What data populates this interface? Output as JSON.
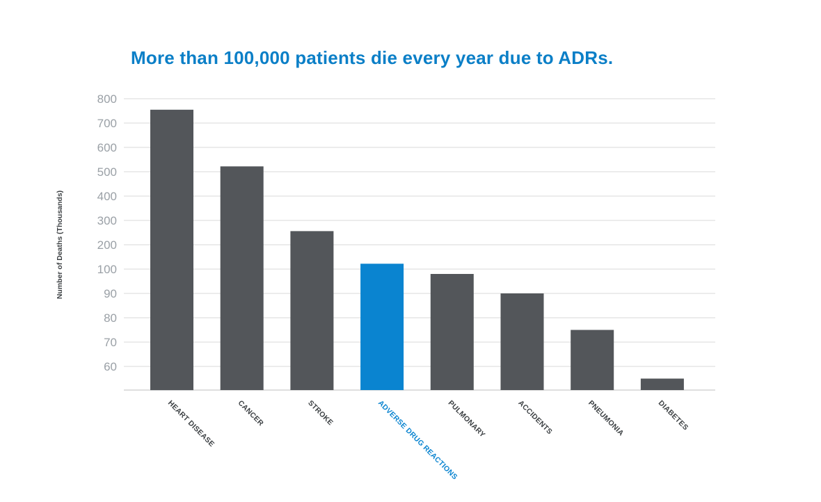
{
  "colors": {
    "title": "#0b7fc7",
    "bar_default": "#53565a",
    "bar_highlight": "#0a84d0",
    "label_default": "#3c4043",
    "label_highlight": "#0a84d0"
  },
  "chart_data": {
    "type": "bar",
    "title": "More than 100,000 patients die every year due to ADRs.",
    "xlabel": "",
    "ylabel": "Number of Deaths (Thousands)",
    "y_ticks": [
      60,
      70,
      80,
      90,
      100,
      200,
      300,
      400,
      500,
      600,
      700,
      800
    ],
    "grid": true,
    "categories": [
      "HEART DISEASE",
      "CANCER",
      "STROKE",
      "ADVERSE DRUG REACTIONS",
      "PULMONARY",
      "ACCIDENTS",
      "PNEUMONIA",
      "DIABETES"
    ],
    "values": [
      755,
      522,
      256,
      122,
      98,
      90,
      75,
      55
    ],
    "highlight": "ADVERSE DRUG REACTIONS"
  }
}
